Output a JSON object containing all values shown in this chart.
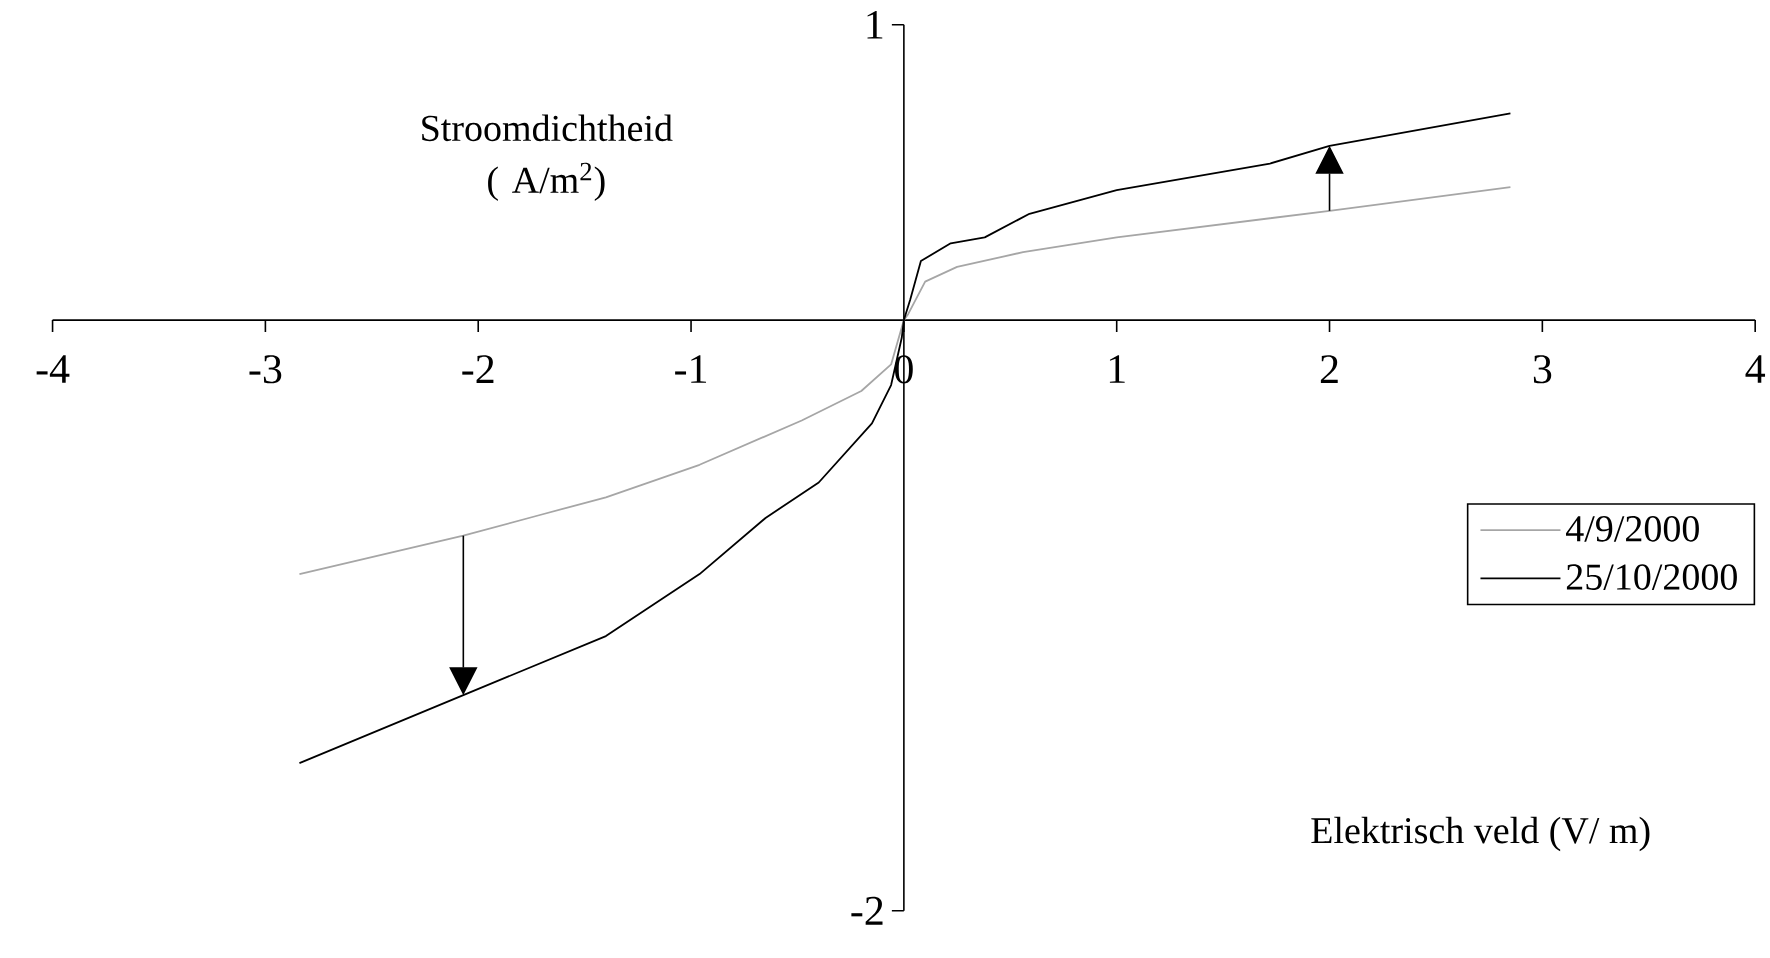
{
  "chart_data": {
    "type": "line",
    "xlabel": "Elektrisch veld (V/ m)",
    "ylabel": "Stroomdichtheid ( A/m$^{2}$)",
    "xlim": [
      -4,
      4
    ],
    "ylim": [
      -2,
      1
    ],
    "xticks": [
      -4,
      -3,
      -2,
      -1,
      0,
      1,
      2,
      3,
      4
    ],
    "yticks": [
      -2,
      1
    ],
    "legend": "right",
    "grid": false,
    "series": [
      {
        "name": "4/9/2000",
        "color": "#a6a6a6",
        "x": [
          -2.84,
          -2.07,
          -1.71,
          -1.4,
          -0.96,
          -0.48,
          -0.2,
          -0.06,
          0,
          0.02,
          0.1,
          0.25,
          0.56,
          1.0,
          2.0,
          2.85
        ],
        "values": [
          -0.86,
          -0.73,
          -0.66,
          -0.6,
          -0.49,
          -0.34,
          -0.24,
          -0.15,
          0,
          0.02,
          0.13,
          0.18,
          0.23,
          0.28,
          0.37,
          0.45
        ]
      },
      {
        "name": "25/10/2000",
        "color": "#000000",
        "x": [
          -2.84,
          -2.07,
          -1.4,
          -0.96,
          -0.65,
          -0.4,
          -0.15,
          -0.06,
          -0.01,
          0,
          0.03,
          0.08,
          0.22,
          0.38,
          0.59,
          1.0,
          1.72,
          2.0,
          2.85
        ],
        "values": [
          -1.5,
          -1.27,
          -1.07,
          -0.86,
          -0.67,
          -0.55,
          -0.35,
          -0.22,
          -0.06,
          0,
          0.07,
          0.2,
          0.26,
          0.28,
          0.36,
          0.44,
          0.53,
          0.59,
          0.7
        ]
      }
    ]
  }
}
